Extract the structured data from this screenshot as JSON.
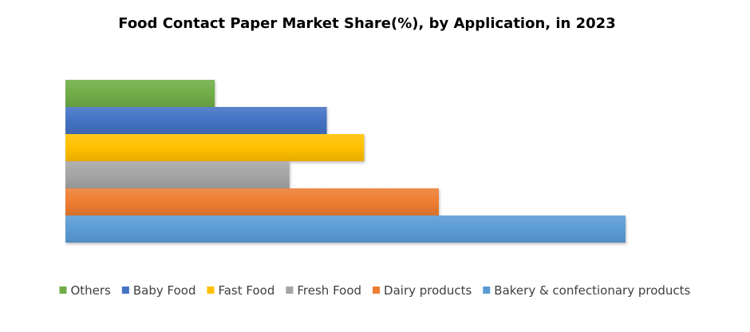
{
  "chart_data": {
    "type": "bar",
    "orientation": "horizontal",
    "title": "Food Contact Paper Market Share(%), by Application, in 2023",
    "xlabel": "",
    "ylabel": "",
    "xlim": [
      0,
      30
    ],
    "grid": false,
    "legend_position": "bottom",
    "series": [
      {
        "name": "Others",
        "value": 8,
        "color": "#70AD47"
      },
      {
        "name": "Baby Food",
        "value": 14,
        "color": "#4472C4"
      },
      {
        "name": "Fast Food",
        "value": 16,
        "color": "#FFC000"
      },
      {
        "name": "Fresh Food",
        "value": 12,
        "color": "#A5A5A5"
      },
      {
        "name": "Dairy products",
        "value": 20,
        "color": "#ED7D31"
      },
      {
        "name": "Bakery & confectionary products",
        "value": 30,
        "color": "#5B9BD5"
      }
    ]
  }
}
